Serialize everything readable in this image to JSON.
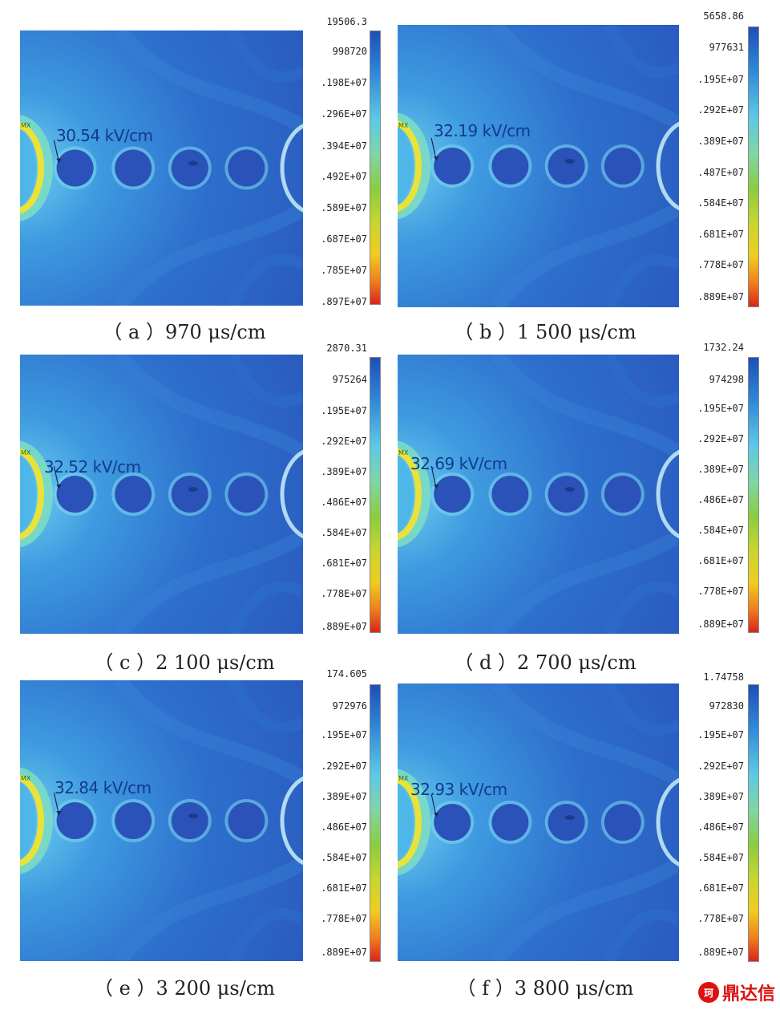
{
  "panels": [
    {
      "annotation": "30.54 kV/cm",
      "mx_label": "MX",
      "caption": "（ a ）970 μs/cm",
      "scale": [
        "19506.3",
        "998720",
        ".198E+07",
        ".296E+07",
        ".394E+07",
        ".492E+07",
        ".589E+07",
        ".687E+07",
        ".785E+07",
        ".897E+07"
      ]
    },
    {
      "annotation": "32.19 kV/cm",
      "mx_label": "MX",
      "caption": "（ b ）1 500 μs/cm",
      "scale": [
        "5658.86",
        "977631",
        ".195E+07",
        ".292E+07",
        ".389E+07",
        ".487E+07",
        ".584E+07",
        ".681E+07",
        ".778E+07",
        ".889E+07"
      ]
    },
    {
      "annotation": "32.52 kV/cm",
      "mx_label": "MX",
      "caption": "（ c ）2 100 μs/cm",
      "scale": [
        "2870.31",
        "975264",
        ".195E+07",
        ".292E+07",
        ".389E+07",
        ".486E+07",
        ".584E+07",
        ".681E+07",
        ".778E+07",
        ".889E+07"
      ]
    },
    {
      "annotation": "32.69 kV/cm",
      "mx_label": "MX",
      "caption": "（ d ）2 700 μs/cm",
      "scale": [
        "1732.24",
        "974298",
        ".195E+07",
        ".292E+07",
        ".389E+07",
        ".486E+07",
        ".584E+07",
        ".681E+07",
        ".778E+07",
        ".889E+07"
      ]
    },
    {
      "annotation": "32.84 kV/cm",
      "mx_label": "MX",
      "caption": "（ e ）3 200 μs/cm",
      "scale": [
        "174.605",
        "972976",
        ".195E+07",
        ".292E+07",
        ".389E+07",
        ".486E+07",
        ".584E+07",
        ".681E+07",
        ".778E+07",
        ".889E+07"
      ]
    },
    {
      "annotation": "32.93 kV/cm",
      "mx_label": "MX",
      "caption": "（ f ）3 800 μs/cm",
      "scale": [
        "1.74758",
        "972830",
        ".195E+07",
        ".292E+07",
        ".389E+07",
        ".486E+07",
        ".584E+07",
        ".681E+07",
        ".778E+07",
        ".889E+07"
      ]
    }
  ],
  "watermark": {
    "icon": "珂",
    "text": "鼎达信"
  }
}
